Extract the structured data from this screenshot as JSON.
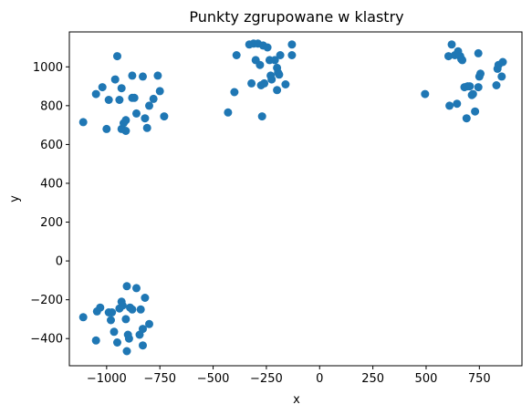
{
  "chart_data": {
    "type": "scatter",
    "title": "Punkty zgrupowane w klastry",
    "xlabel": "x",
    "ylabel": "y",
    "xlim": [
      -1175,
      950
    ],
    "ylim": [
      -540,
      1180
    ],
    "xticks": [
      -1000,
      -750,
      -500,
      -250,
      0,
      250,
      500,
      750
    ],
    "yticks": [
      -400,
      -200,
      0,
      200,
      400,
      600,
      800,
      1000
    ],
    "xtick_labels": [
      "−1000",
      "−750",
      "−500",
      "−250",
      "0",
      "250",
      "500",
      "750"
    ],
    "ytick_labels": [
      "−400",
      "−200",
      "0",
      "200",
      "400",
      "600",
      "800",
      "1000"
    ],
    "grid": false,
    "marker_color": "#1f77b4",
    "series": [
      {
        "points": [
          [
            -1110,
            715
          ],
          [
            -1050,
            860
          ],
          [
            -1020,
            895
          ],
          [
            -1000,
            680
          ],
          [
            -990,
            830
          ],
          [
            -960,
            935
          ],
          [
            -950,
            1055
          ],
          [
            -940,
            830
          ],
          [
            -930,
            890
          ],
          [
            -930,
            680
          ],
          [
            -920,
            710
          ],
          [
            -910,
            725
          ],
          [
            -910,
            670
          ],
          [
            -880,
            840
          ],
          [
            -880,
            955
          ],
          [
            -870,
            840
          ],
          [
            -860,
            760
          ],
          [
            -830,
            950
          ],
          [
            -820,
            735
          ],
          [
            -810,
            685
          ],
          [
            -800,
            800
          ],
          [
            -780,
            835
          ],
          [
            -760,
            955
          ],
          [
            -750,
            875
          ],
          [
            -730,
            745
          ],
          [
            -430,
            765
          ],
          [
            -400,
            870
          ],
          [
            -390,
            1060
          ],
          [
            -330,
            1115
          ],
          [
            -320,
            915
          ],
          [
            -310,
            1120
          ],
          [
            -300,
            1035
          ],
          [
            -290,
            1120
          ],
          [
            -280,
            1010
          ],
          [
            -275,
            905
          ],
          [
            -270,
            745
          ],
          [
            -265,
            1110
          ],
          [
            -260,
            915
          ],
          [
            -245,
            1100
          ],
          [
            -235,
            1035
          ],
          [
            -230,
            955
          ],
          [
            -225,
            935
          ],
          [
            -210,
            1035
          ],
          [
            -200,
            995
          ],
          [
            -200,
            880
          ],
          [
            -195,
            970
          ],
          [
            -190,
            960
          ],
          [
            -185,
            1060
          ],
          [
            -160,
            910
          ],
          [
            -130,
            1115
          ],
          [
            -130,
            1060
          ],
          [
            495,
            860
          ],
          [
            605,
            1055
          ],
          [
            610,
            800
          ],
          [
            620,
            1115
          ],
          [
            635,
            1060
          ],
          [
            645,
            810
          ],
          [
            650,
            1080
          ],
          [
            660,
            1055
          ],
          [
            665,
            1040
          ],
          [
            670,
            1035
          ],
          [
            680,
            895
          ],
          [
            690,
            735
          ],
          [
            695,
            900
          ],
          [
            705,
            900
          ],
          [
            715,
            855
          ],
          [
            720,
            860
          ],
          [
            730,
            770
          ],
          [
            745,
            895
          ],
          [
            745,
            1070
          ],
          [
            750,
            950
          ],
          [
            755,
            965
          ],
          [
            830,
            905
          ],
          [
            835,
            990
          ],
          [
            840,
            1010
          ],
          [
            855,
            950
          ],
          [
            860,
            1025
          ],
          [
            -1110,
            -290
          ],
          [
            -1050,
            -410
          ],
          [
            -1045,
            -260
          ],
          [
            -1030,
            -240
          ],
          [
            -990,
            -265
          ],
          [
            -980,
            -305
          ],
          [
            -975,
            -265
          ],
          [
            -965,
            -365
          ],
          [
            -950,
            -420
          ],
          [
            -940,
            -245
          ],
          [
            -930,
            -210
          ],
          [
            -925,
            -230
          ],
          [
            -910,
            -300
          ],
          [
            -905,
            -465
          ],
          [
            -905,
            -130
          ],
          [
            -900,
            -380
          ],
          [
            -895,
            -400
          ],
          [
            -890,
            -240
          ],
          [
            -880,
            -250
          ],
          [
            -860,
            -140
          ],
          [
            -845,
            -380
          ],
          [
            -840,
            -250
          ],
          [
            -830,
            -435
          ],
          [
            -830,
            -350
          ],
          [
            -820,
            -190
          ],
          [
            -800,
            -325
          ]
        ]
      }
    ]
  }
}
